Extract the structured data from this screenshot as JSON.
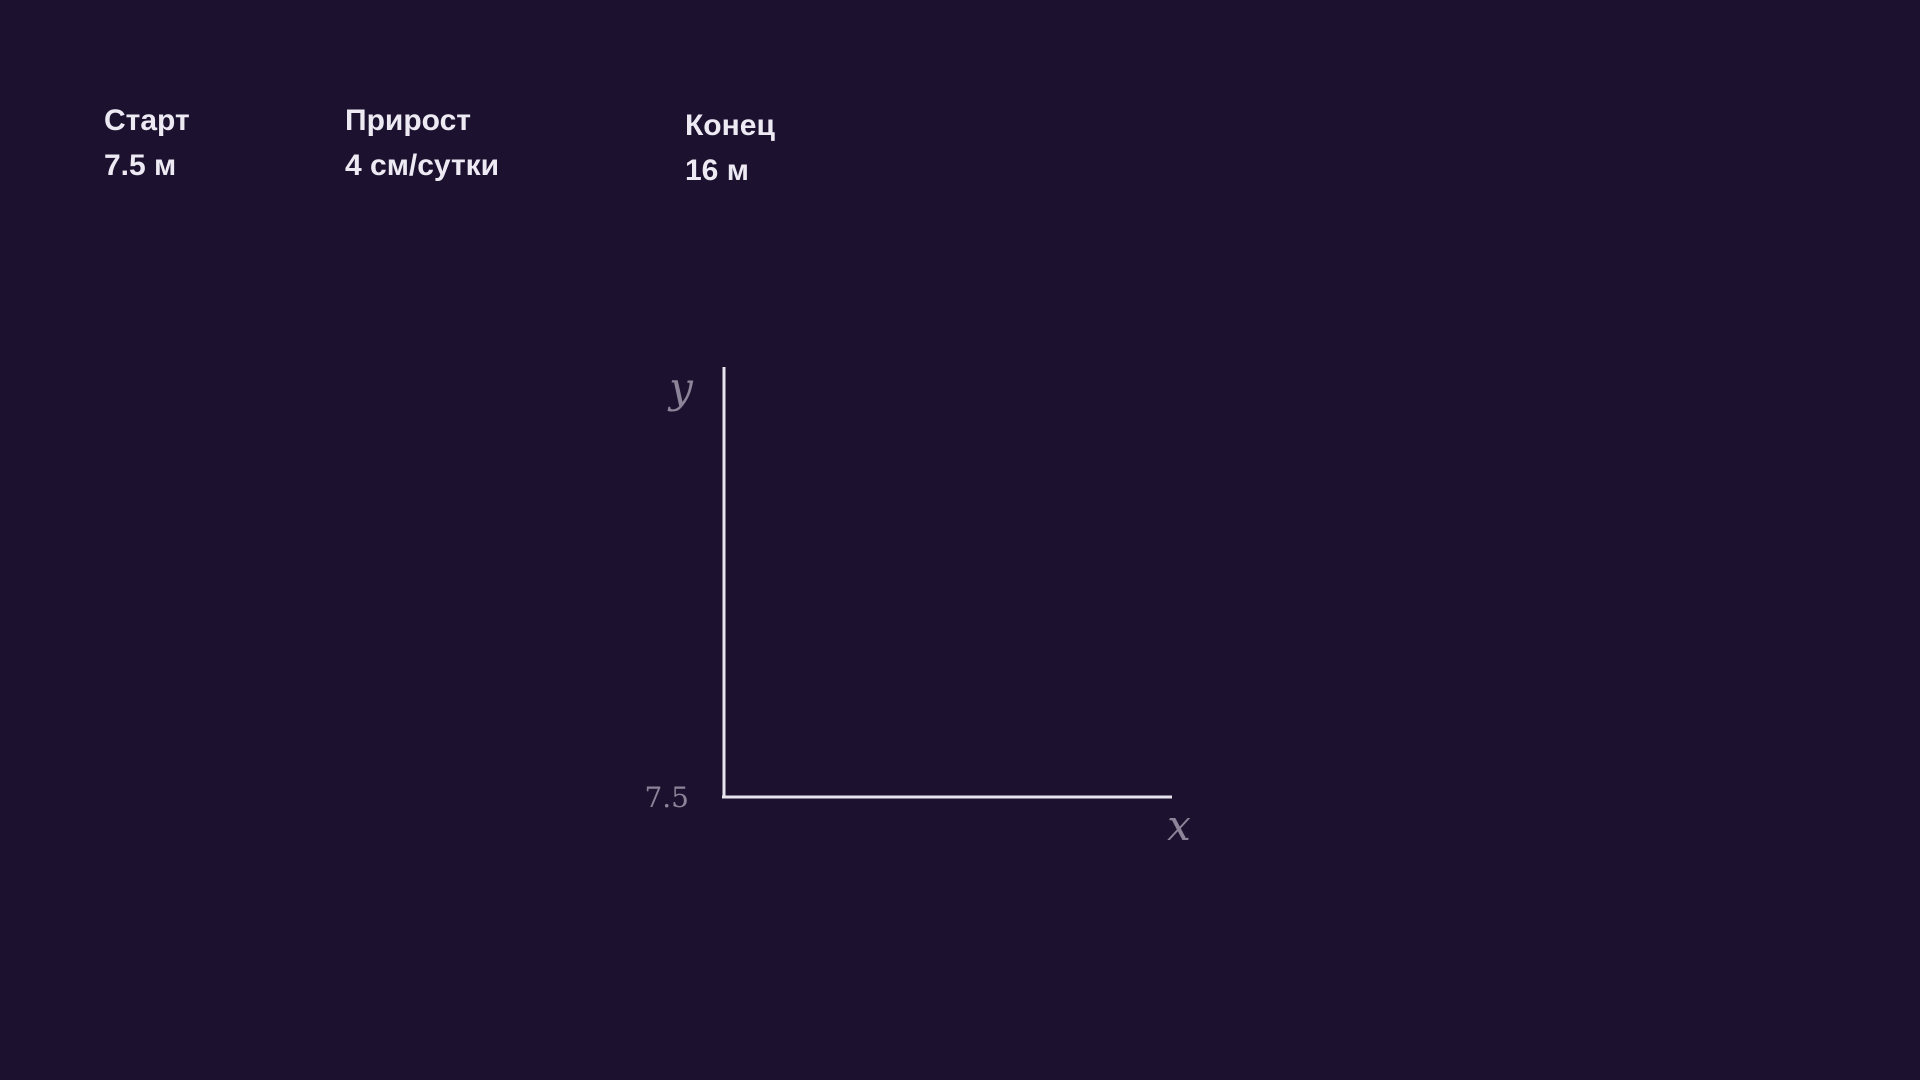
{
  "stats": {
    "start": {
      "label": "Старт",
      "value": "7.5 м"
    },
    "growth": {
      "label": "Прирост",
      "value": "4 см/сутки"
    },
    "end": {
      "label": "Конец",
      "value": "16 м"
    }
  },
  "colors": {
    "background": "#1c1230",
    "text": "#eeeaf4",
    "axis": "#e8e4ee",
    "muted": "#8c8599"
  },
  "chart_data": {
    "type": "line",
    "xlabel": "x",
    "ylabel": "y",
    "y_tick_labels": [
      "7.5"
    ],
    "series": [],
    "grid": false
  }
}
